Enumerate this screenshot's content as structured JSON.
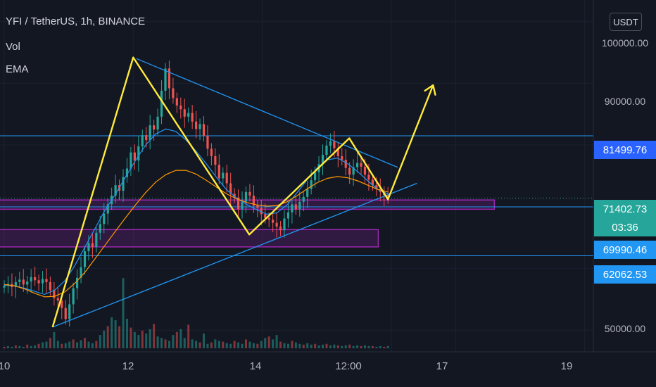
{
  "header": {
    "title": "YFI / TetherUS, 1h, BINANCE",
    "vol_label": "Vol",
    "ema_label": "EMA",
    "currency_button": "USDT"
  },
  "axis": {
    "y_ticks": [
      "100000.00",
      "90000.00",
      "50000.00"
    ],
    "x_ticks": [
      "10",
      "12",
      "14",
      "12:00",
      "17",
      "19"
    ]
  },
  "price_tags": {
    "resistance": "81499.76",
    "current_price": "71402.73",
    "countdown": "03:36",
    "support_1": "69990.46",
    "support_2": "62062.53"
  },
  "colors": {
    "background": "#131722",
    "up_candle": "#26a69a",
    "down_candle": "#ef5350",
    "pattern_line": "#ffeb3b",
    "trend_line": "#2196f3",
    "zone_border": "#9c27b0",
    "ema_fast": "#2196f3",
    "ema_slow": "#ff9800"
  },
  "chart_data": {
    "type": "candlestick",
    "symbol": "YFI / TetherUS",
    "interval": "1h",
    "exchange": "BINANCE",
    "y_range": [
      46500,
      103500
    ],
    "x_range": [
      10,
      19.2
    ],
    "horizontal_levels": [
      81499.76,
      71402.73,
      69990.46,
      62062.53
    ],
    "zones": [
      {
        "x_start": 10,
        "x_end": 17.6,
        "y_low": 69600,
        "y_high": 71100
      },
      {
        "x_start": 10,
        "x_end": 15.8,
        "y_low": 63500,
        "y_high": 66300
      }
    ],
    "pattern_path": [
      {
        "x": 10.75,
        "y": 50500
      },
      {
        "x": 12.0,
        "y": 94200
      },
      {
        "x": 13.8,
        "y": 65500
      },
      {
        "x": 15.35,
        "y": 81100
      },
      {
        "x": 15.95,
        "y": 71200
      },
      {
        "x": 16.65,
        "y": 89700
      }
    ],
    "trend_lines": [
      {
        "from": {
          "x": 12.05,
          "y": 94000
        },
        "to": {
          "x": 16.1,
          "y": 76400
        }
      },
      {
        "from": {
          "x": 10.75,
          "y": 50500
        },
        "to": {
          "x": 16.4,
          "y": 73800
        }
      }
    ],
    "candles_close": [
      57200,
      57500,
      57000,
      57800,
      58200,
      57400,
      57900,
      58600,
      58100,
      57600,
      58300,
      57800,
      56500,
      55200,
      54800,
      53600,
      51800,
      54200,
      56800,
      58500,
      60200,
      62800,
      64100,
      63500,
      65800,
      67200,
      68900,
      70400,
      71800,
      73500,
      72600,
      74800,
      76200,
      78800,
      77500,
      79800,
      81600,
      80800,
      83200,
      82500,
      84600,
      88800,
      92400,
      89200,
      87600,
      86400,
      85800,
      84600,
      85200,
      83800,
      82600,
      83400,
      81500,
      79400,
      78200,
      76800,
      74600,
      75500,
      73800,
      72100,
      71500,
      69600,
      70800,
      72400,
      71800,
      70200,
      69800,
      68800,
      68200,
      67900,
      67400,
      66800,
      66200,
      68100,
      69100,
      70400,
      69600,
      70800,
      71600,
      72900,
      74300,
      75600,
      76900,
      78400,
      79900,
      80600,
      79500,
      78200,
      77600,
      76300,
      75200,
      76400,
      77100,
      76500,
      75200,
      74400,
      73500,
      72900,
      72400,
      71900,
      71402.73
    ],
    "ema_fast": [
      57300,
      57200,
      56800,
      56300,
      55800,
      56500,
      58000,
      60500,
      63500,
      66500,
      69500,
      72000,
      74800,
      77500,
      80000,
      81800,
      82600,
      82200,
      80800,
      79000,
      77000,
      74800,
      72800,
      71400,
      70400,
      69500,
      68800,
      69000,
      70300,
      72300,
      74400,
      76300,
      77600,
      77900,
      77000,
      75700,
      74200,
      72800,
      72100
    ],
    "ema_slow": [
      57400,
      57200,
      56700,
      56000,
      55400,
      55500,
      56200,
      57600,
      59400,
      61600,
      63800,
      66000,
      68200,
      70300,
      72300,
      74000,
      75200,
      75900,
      75900,
      75300,
      74300,
      73200,
      72100,
      71300,
      70700,
      70300,
      70100,
      70200,
      70800,
      71800,
      72900,
      73900,
      74600,
      74900,
      74700,
      74200,
      73500,
      72800,
      72400
    ],
    "volume": [
      2,
      3,
      2,
      4,
      3,
      2,
      5,
      3,
      4,
      6,
      8,
      9,
      14,
      22,
      10,
      6,
      7,
      9,
      12,
      8,
      11,
      14,
      9,
      7,
      10,
      18,
      24,
      30,
      42,
      38,
      30,
      95,
      40,
      28,
      22,
      18,
      24,
      20,
      26,
      33,
      16,
      14,
      12,
      10,
      18,
      22,
      26,
      14,
      32,
      12,
      10,
      8,
      20,
      6,
      8,
      12,
      10,
      9,
      7,
      6,
      10,
      8,
      6,
      12,
      9,
      7,
      6,
      10,
      14,
      16,
      12,
      18,
      9,
      7,
      6,
      10,
      8,
      6,
      5,
      7,
      5,
      6,
      4,
      5,
      6,
      4,
      5,
      4,
      3,
      4,
      5,
      3,
      4,
      3,
      4,
      3,
      3,
      2,
      3,
      2,
      3
    ]
  }
}
